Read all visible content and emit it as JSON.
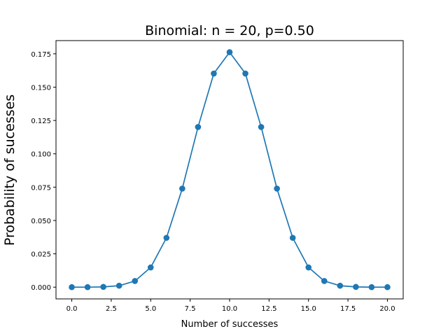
{
  "chart_data": {
    "type": "line",
    "title": "Binomial: n = 20, p=0.50",
    "xlabel": "Number of successes",
    "ylabel": "Probability of sucesses",
    "xlim": [
      -1.0,
      21.0
    ],
    "ylim": [
      -0.0088,
      0.1849
    ],
    "x_ticks": [
      0.0,
      2.5,
      5.0,
      7.5,
      10.0,
      12.5,
      15.0,
      17.5,
      20.0
    ],
    "x_tick_labels": [
      "0.0",
      "2.5",
      "5.0",
      "7.5",
      "10.0",
      "12.5",
      "15.0",
      "17.5",
      "20.0"
    ],
    "y_ticks": [
      0.0,
      0.025,
      0.05,
      0.075,
      0.1,
      0.125,
      0.15,
      0.175
    ],
    "y_tick_labels": [
      "0.000",
      "0.025",
      "0.050",
      "0.075",
      "0.100",
      "0.125",
      "0.150",
      "0.175"
    ],
    "grid": false,
    "color": "#1f77b4",
    "series": [
      {
        "x": [
          0,
          1,
          2,
          3,
          4,
          5,
          6,
          7,
          8,
          9,
          10,
          11,
          12,
          13,
          14,
          15,
          16,
          17,
          18,
          19,
          20
        ],
        "values": [
          0.0,
          0.0,
          0.0002,
          0.0011,
          0.0046,
          0.0148,
          0.037,
          0.0739,
          0.1201,
          0.1602,
          0.1762,
          0.1602,
          0.1201,
          0.0739,
          0.037,
          0.0148,
          0.0046,
          0.0011,
          0.0002,
          0.0,
          0.0
        ]
      }
    ]
  }
}
